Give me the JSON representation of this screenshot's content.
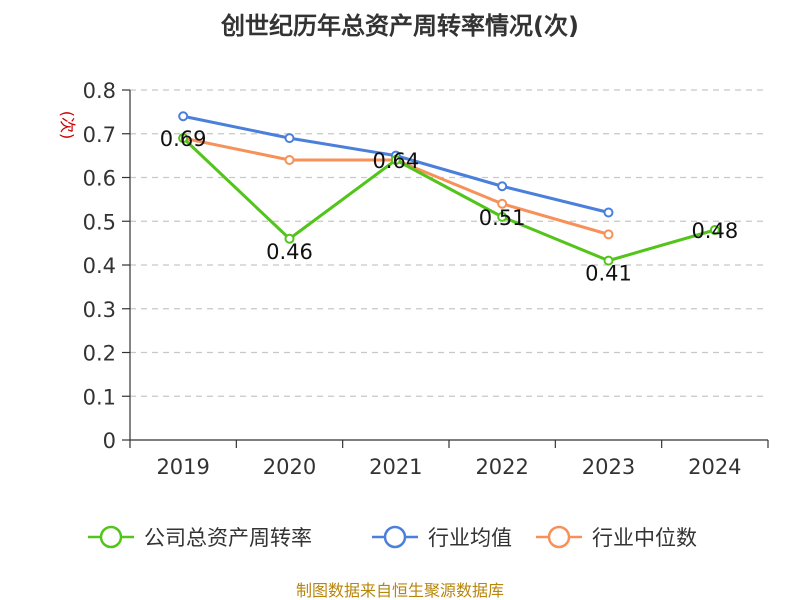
{
  "chart_data": {
    "type": "line",
    "title": "创世纪历年总资产周转率情况(次)",
    "ylabel": "(次)",
    "xlabel": "",
    "categories": [
      "2019",
      "2020",
      "2021",
      "2022",
      "2023",
      "2024"
    ],
    "ylim": [
      0,
      0.8
    ],
    "yticks": [
      "0",
      "0.1",
      "0.2",
      "0.3",
      "0.4",
      "0.5",
      "0.6",
      "0.7",
      "0.8"
    ],
    "grid": true,
    "legend_position": "bottom",
    "series": [
      {
        "name": "公司总资产周转率",
        "color": "#52c41a",
        "values": [
          0.69,
          0.46,
          0.64,
          0.51,
          0.41,
          0.48
        ],
        "labels": [
          "0.69",
          "0.46",
          "0.64",
          "0.51",
          "0.41",
          "0.48"
        ]
      },
      {
        "name": "行业均值",
        "color": "#4a7fdc",
        "values": [
          0.74,
          0.69,
          0.65,
          0.58,
          0.52,
          null
        ]
      },
      {
        "name": "行业中位数",
        "color": "#f79059",
        "values": [
          0.69,
          0.64,
          0.64,
          0.54,
          0.47,
          null
        ]
      }
    ]
  },
  "source": "制图数据来自恒生聚源数据库"
}
